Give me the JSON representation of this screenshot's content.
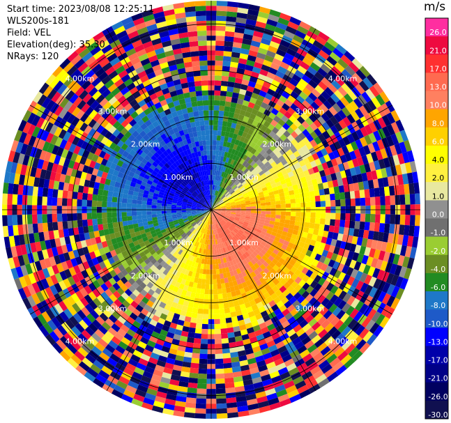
{
  "header": {
    "start_time": "Start time: 2023/08/08 12:25:11",
    "instrument": "WLS200s-181",
    "field": "Field: VEL",
    "elevation": "Elevation(deg): 35.30",
    "nrays": "NRays: 120"
  },
  "colorbar": {
    "unit": "m/s",
    "labels": [
      "26.0",
      "21.0",
      "17.0",
      "13.0",
      "10.0",
      "8.0",
      "6.0",
      "4.0",
      "2.0",
      "1.0",
      "0.0",
      "-1.0",
      "-2.0",
      "-4.0",
      "-6.0",
      "-8.0",
      "-10.0",
      "-13.0",
      "-17.0",
      "-21.0",
      "-26.0",
      "-30.0"
    ],
    "colors": [
      "#ff2ea0",
      "#ee0a40",
      "#ff3030",
      "#ff6a50",
      "#ff8060",
      "#ffa500",
      "#ffd000",
      "#ffff00",
      "#fff040",
      "#e8e8a0",
      "#909090",
      "#707070",
      "#9acd32",
      "#6b8e23",
      "#228b22",
      "#1e78c8",
      "#1e5ac8",
      "#0000ff",
      "#0000aa",
      "#000088",
      "#000060",
      "#101050"
    ]
  },
  "chart_data": {
    "type": "heatmap",
    "projection": "polar PPI",
    "field": "VEL",
    "units": "m/s",
    "nrays": 120,
    "range_rings_km": [
      1.0,
      2.0,
      3.0,
      4.0
    ],
    "ring_labels": [
      "1.00km",
      "2.00km",
      "3.00km",
      "4.00km"
    ],
    "vmin": -30.0,
    "vmax": 26.0,
    "max_range_km": 4.5,
    "spokes_deg": [
      0,
      30,
      60,
      90,
      120,
      150,
      180,
      210,
      240,
      270,
      300,
      330
    ],
    "signal_range_km": 2.5,
    "pattern": "positive velocities (red/orange/yellow) to the south-east, negative velocities (blue/green) to the north-west, noisy speckle beyond ~2.5 km"
  }
}
